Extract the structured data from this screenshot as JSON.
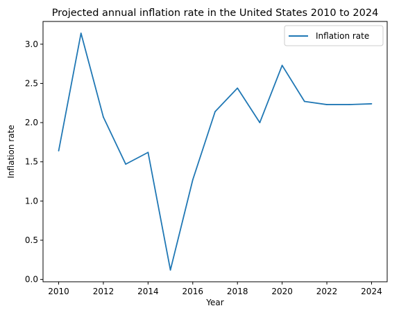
{
  "chart_data": {
    "type": "line",
    "title": "Projected annual inflation rate in the United States 2010 to 2024",
    "xlabel": "Year",
    "ylabel": "Inflation rate",
    "x": [
      2010,
      2011,
      2012,
      2013,
      2014,
      2015,
      2016,
      2017,
      2018,
      2019,
      2020,
      2021,
      2022,
      2023,
      2024
    ],
    "series": [
      {
        "name": "Inflation rate",
        "color": "#1f77b4",
        "values": [
          1.64,
          3.14,
          2.07,
          1.47,
          1.62,
          0.12,
          1.27,
          2.14,
          2.44,
          2.0,
          2.73,
          2.27,
          2.23,
          2.23,
          2.24
        ]
      }
    ],
    "xlim": [
      2009.3,
      2024.7
    ],
    "ylim": [
      -0.03,
      3.29
    ],
    "xticks": [
      "2010",
      "2012",
      "2014",
      "2016",
      "2018",
      "2020",
      "2022",
      "2024"
    ],
    "yticks": [
      "0.0",
      "0.5",
      "1.0",
      "1.5",
      "2.0",
      "2.5",
      "3.0"
    ],
    "grid": false,
    "legend": "top-right"
  }
}
